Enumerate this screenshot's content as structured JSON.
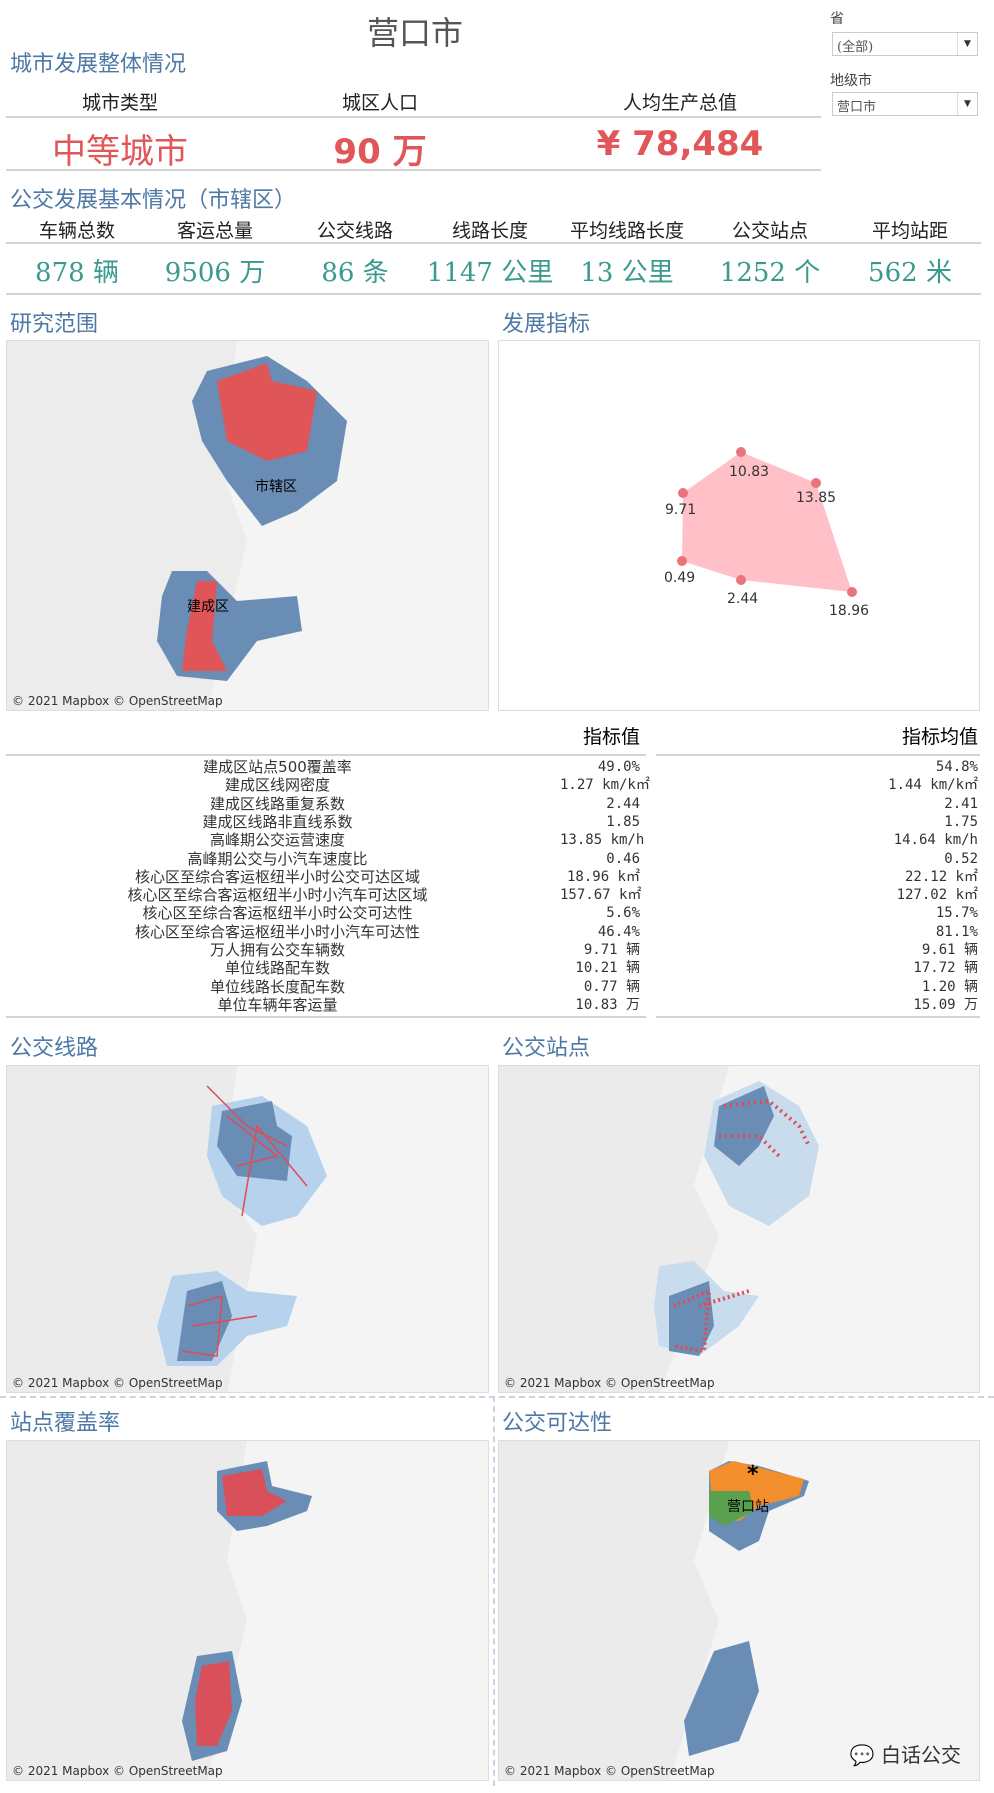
{
  "title": "营口市",
  "filters": {
    "province_label": "省",
    "province_value": "(全部)",
    "city_label": "地级市",
    "city_value": "营口市"
  },
  "overall": {
    "section_title": "城市发展整体情况",
    "headers": [
      "城市类型",
      "城区人口",
      "人均生产总值"
    ],
    "values": [
      "中等城市",
      "90 万",
      "¥ 78,484"
    ]
  },
  "transit": {
    "section_title": "公交发展基本情况（市辖区）",
    "headers": [
      "车辆总数",
      "客运总量",
      "公交线路",
      "线路长度",
      "平均线路长度",
      "公交站点",
      "平均站距"
    ],
    "values": [
      "878 辆",
      "9506 万",
      "86 条",
      "1147 公里",
      "13 公里",
      "1252 个",
      "562 米"
    ]
  },
  "panels": {
    "study_area": "研究范围",
    "indicators": "发展指标",
    "bus_lines": "公交线路",
    "bus_stops": "公交站点",
    "coverage": "站点覆盖率",
    "accessibility": "公交可达性"
  },
  "map_labels": {
    "district1": "市辖区",
    "district2": "建成区",
    "station": "营口站"
  },
  "credit": "© 2021 Mapbox © OpenStreetMap",
  "watermark": "白话公交",
  "table": {
    "col_value": "指标值",
    "col_avg": "指标均值",
    "rows": [
      {
        "name": "建成区站点500覆盖率",
        "value": "49.0%",
        "avg": "54.8%"
      },
      {
        "name": "建成区线网密度",
        "value": "1.27 km/k㎡",
        "avg": "1.44 km/k㎡"
      },
      {
        "name": "建成区线路重复系数",
        "value": "2.44",
        "avg": "2.41"
      },
      {
        "name": "建成区线路非直线系数",
        "value": "1.85",
        "avg": "1.75"
      },
      {
        "name": "高峰期公交运营速度",
        "value": "13.85 km/h",
        "avg": "14.64 km/h"
      },
      {
        "name": "高峰期公交与小汽车速度比",
        "value": "0.46",
        "avg": "0.52"
      },
      {
        "name": "核心区至综合客运枢纽半小时公交可达区域",
        "value": "18.96 k㎡",
        "avg": "22.12 k㎡"
      },
      {
        "name": "核心区至综合客运枢纽半小时小汽车可达区域",
        "value": "157.67 k㎡",
        "avg": "127.02 k㎡"
      },
      {
        "name": "核心区至综合客运枢纽半小时公交可达性",
        "value": "5.6%",
        "avg": "15.7%"
      },
      {
        "name": "核心区至综合客运枢纽半小时小汽车可达性",
        "value": "46.4%",
        "avg": "81.1%"
      },
      {
        "name": "万人拥有公交车辆数",
        "value": "9.71 辆",
        "avg": "9.61 辆"
      },
      {
        "name": "单位线路配车数",
        "value": "10.21 辆",
        "avg": "17.72 辆"
      },
      {
        "name": "单位线路长度配车数",
        "value": "0.77 辆",
        "avg": "1.20 辆"
      },
      {
        "name": "单位车辆年客运量",
        "value": "10.83 万",
        "avg": "15.09 万"
      }
    ]
  },
  "chart_data": {
    "type": "radar",
    "values": [
      10.83,
      13.85,
      18.96,
      2.44,
      0.49,
      9.71
    ],
    "fill": "#ffc0c8",
    "point_color": "#e8747c"
  },
  "colors": {
    "accent": "#4e79a7",
    "red": "#e15759",
    "teal": "#3a9a8e"
  }
}
